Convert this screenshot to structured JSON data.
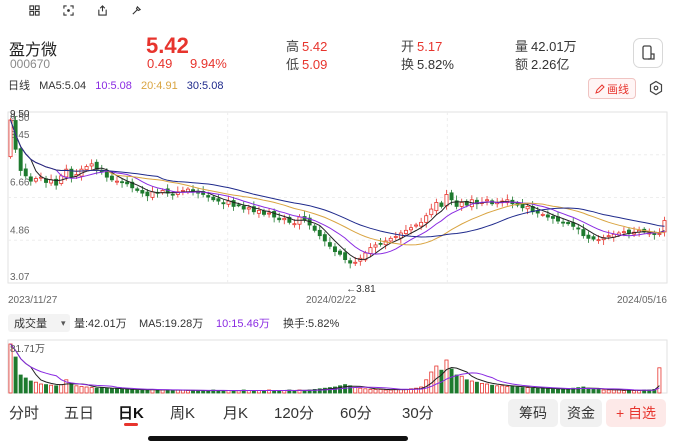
{
  "stock": {
    "name": "盈方微",
    "code": "000670",
    "price": "5.42",
    "change": "0.49",
    "change_pct": "9.94%",
    "high_label": "高",
    "high": "5.42",
    "low_label": "低",
    "low": "5.09",
    "open_label": "开",
    "open": "5.17",
    "turnover_label": "换",
    "turnover": "5.82%",
    "volume_label": "量",
    "volume": "42.01万",
    "amount_label": "额",
    "amount": "2.26亿"
  },
  "ma_legend": {
    "period": "日线",
    "ma5": "MA5:5.04",
    "ma10": "10:5.08",
    "ma20": "20:4.91",
    "ma30": "30:5.08"
  },
  "draw_button_label": "画线",
  "colors": {
    "up": "#e7342d",
    "down": "#1e7a2e",
    "ma5": "#222222",
    "ma10": "#8a2be2",
    "ma20": "#d9a441",
    "ma30": "#1f2a8c"
  },
  "icons": [
    "grid-icon",
    "scan-icon",
    "share-icon",
    "settings-icon",
    "phone-rotate-icon",
    "pencil-icon",
    "hexagon-icon"
  ],
  "volume_legend": {
    "selector": "成交量",
    "vol": "量:42.01万",
    "ma5": "MA5:19.28万",
    "ma10": "10:15.46万",
    "turnover": "换手:5.82%",
    "axis_max": "81.71万"
  },
  "chart_data": {
    "type": "candlestick",
    "y_axis_ticks": [
      "9.50",
      "8.45",
      "6.66",
      "4.86",
      "3.07"
    ],
    "ylim": [
      3.07,
      9.5
    ],
    "x_axis_labels": [
      "2023/11/27",
      "2024/02/22",
      "2024/05/16"
    ],
    "annotations": {
      "high": "9.50",
      "low": "←3.81"
    },
    "closes": [
      9.2,
      8.1,
      7.3,
      7.1,
      6.9,
      7.0,
      7.05,
      6.85,
      6.95,
      6.75,
      7.1,
      7.35,
      7.05,
      7.15,
      7.35,
      7.45,
      7.55,
      7.35,
      7.25,
      7.05,
      6.95,
      6.9,
      6.85,
      6.8,
      6.65,
      6.55,
      6.45,
      6.35,
      6.5,
      6.45,
      6.55,
      6.45,
      6.4,
      6.5,
      6.55,
      6.6,
      6.5,
      6.45,
      6.4,
      6.3,
      6.2,
      6.15,
      6.05,
      6.15,
      5.95,
      6.0,
      5.85,
      5.9,
      5.75,
      5.8,
      5.65,
      5.7,
      5.55,
      5.45,
      5.5,
      5.35,
      5.3,
      5.55,
      5.45,
      5.25,
      5.05,
      4.85,
      4.65,
      4.45,
      4.25,
      4.15,
      3.95,
      3.82,
      3.85,
      4.0,
      4.2,
      4.4,
      4.5,
      4.55,
      4.65,
      4.75,
      4.82,
      4.95,
      5.05,
      5.15,
      5.25,
      5.35,
      5.6,
      5.85,
      6.1,
      5.95,
      6.4,
      6.2,
      5.95,
      6.1,
      6.0,
      6.2,
      6.05,
      6.1,
      6.2,
      6.05,
      6.1,
      6.15,
      6.2,
      6.05,
      6.0,
      5.9,
      5.95,
      5.75,
      5.7,
      5.65,
      5.55,
      5.5,
      5.4,
      5.35,
      5.3,
      5.2,
      5.1,
      4.85,
      4.75,
      4.72,
      4.7,
      4.78,
      4.85,
      4.9,
      4.95,
      5.0,
      4.95,
      4.98,
      5.05,
      5.0,
      4.95,
      4.9,
      4.93,
      5.42
    ],
    "volumes": [
      81.7,
      60,
      30,
      25,
      20,
      18,
      15,
      14,
      13,
      12,
      14,
      22,
      16,
      12,
      11,
      10,
      9,
      8,
      9,
      8,
      7,
      7,
      6,
      6,
      6,
      5,
      5,
      5,
      6,
      5,
      5,
      5,
      4,
      5,
      5,
      4,
      4,
      4,
      4,
      4,
      5,
      4,
      4,
      4,
      4,
      4,
      5,
      4,
      4,
      4,
      4,
      5,
      4,
      4,
      4,
      5,
      4,
      5,
      4,
      5,
      6,
      7,
      8,
      9,
      10,
      12,
      14,
      12,
      9,
      8,
      7,
      6,
      6,
      6,
      5,
      5,
      6,
      6,
      6,
      7,
      8,
      10,
      22,
      35,
      45,
      38,
      55,
      40,
      30,
      28,
      22,
      20,
      18,
      16,
      15,
      13,
      12,
      12,
      11,
      11,
      10,
      9,
      9,
      8,
      8,
      8,
      7,
      7,
      6,
      6,
      7,
      8,
      9,
      10,
      7,
      6,
      6,
      5,
      5,
      5,
      5,
      4,
      5,
      4,
      4,
      5,
      5,
      6,
      42
    ]
  },
  "tabs": [
    "分时",
    "五日",
    "日K",
    "周K",
    "月K",
    "120分",
    "60分",
    "30分"
  ],
  "active_tab": "日K",
  "actions": {
    "chips": "筹码",
    "funds": "资金",
    "add_watch": "+ 自选"
  }
}
